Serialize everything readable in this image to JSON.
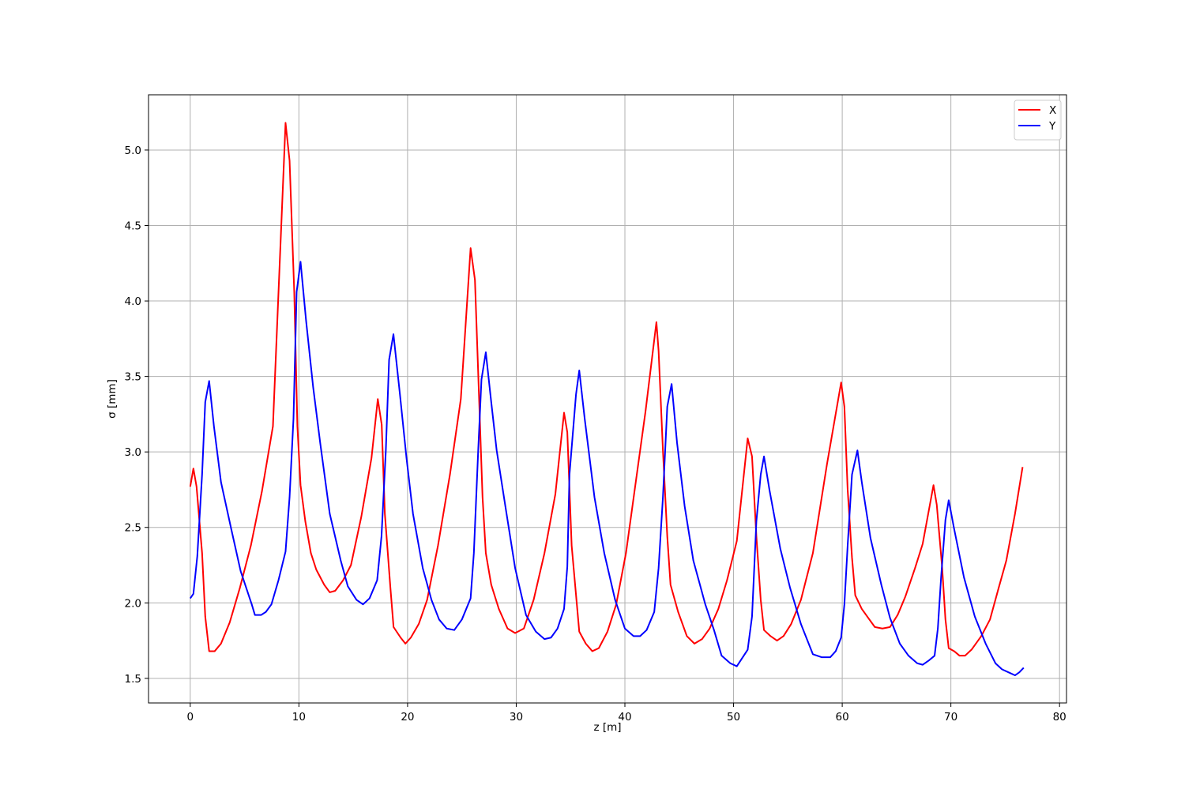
{
  "chart_data": {
    "type": "line",
    "xlabel": "z [m]",
    "ylabel": "σ [mm]",
    "xlim": [
      -3.84,
      80.64
    ],
    "ylim": [
      1.337,
      5.366
    ],
    "xticks": [
      0,
      10,
      20,
      30,
      40,
      50,
      60,
      70,
      80
    ],
    "yticks": [
      1.5,
      {
        "value": 2,
        "label": "2.0"
      },
      2.5,
      {
        "value": 3,
        "label": "3.0"
      },
      3.5,
      {
        "value": 4,
        "label": "4.0"
      },
      4.5,
      {
        "value": 5,
        "label": "5.0"
      }
    ],
    "grid": true,
    "legend": "upper right",
    "series": [
      {
        "name": "X",
        "color": "#ff0000",
        "x": [
          0,
          0.29,
          0.58,
          1.09,
          1.38,
          1.74,
          2.25,
          2.83,
          3.63,
          4.57,
          5.58,
          6.6,
          7.61,
          8.77,
          9.14,
          9.57,
          9.86,
          10.15,
          10.59,
          11.1,
          11.6,
          12.33,
          12.84,
          13.34,
          14.07,
          14.79,
          15.74,
          16.68,
          17.26,
          17.62,
          17.91,
          18.42,
          18.71,
          19.36,
          19.8,
          20.3,
          21.03,
          21.8,
          22.8,
          23.9,
          24.9,
          25.8,
          26.2,
          26.9,
          27.2,
          27.7,
          28.4,
          29.2,
          29.9,
          30.7,
          31.6,
          32.6,
          33.6,
          34.4,
          34.7,
          35.1,
          35.8,
          36.4,
          37.0,
          37.6,
          38.4,
          39.2,
          40.1,
          41.0,
          41.9,
          42.9,
          43.1,
          43.5,
          43.9,
          44.2,
          44.9,
          45.7,
          46.4,
          47.1,
          47.8,
          48.6,
          49.4,
          50.3,
          51.3,
          51.7,
          52.1,
          52.5,
          52.8,
          53.4,
          54.0,
          54.6,
          55.3,
          56.2,
          57.3,
          58.6,
          59.9,
          60.2,
          60.5,
          60.9,
          61.2,
          61.8,
          62.4,
          63.0,
          63.7,
          64.4,
          65.1,
          65.8,
          66.7,
          67.4,
          68.4,
          68.7,
          69.2,
          69.5,
          69.8,
          70.3,
          70.8,
          71.3,
          71.9,
          72.8,
          73.6,
          74.4,
          75.1,
          75.9,
          76.6
        ],
        "values": [
          2.77,
          2.89,
          2.77,
          2.33,
          1.91,
          1.68,
          1.68,
          1.73,
          1.87,
          2.1,
          2.38,
          2.74,
          3.17,
          5.18,
          4.93,
          4.06,
          3.17,
          2.78,
          2.54,
          2.33,
          2.22,
          2.12,
          2.07,
          2.08,
          2.15,
          2.25,
          2.57,
          2.96,
          3.35,
          3.18,
          2.59,
          2.1,
          1.84,
          1.77,
          1.73,
          1.77,
          1.86,
          2.02,
          2.38,
          2.85,
          3.35,
          4.35,
          4.14,
          2.7,
          2.33,
          2.12,
          1.96,
          1.83,
          1.8,
          1.83,
          2.02,
          2.33,
          2.72,
          3.26,
          3.13,
          2.38,
          1.81,
          1.73,
          1.68,
          1.7,
          1.81,
          1.99,
          2.33,
          2.8,
          3.27,
          3.86,
          3.67,
          3.01,
          2.44,
          2.12,
          1.94,
          1.78,
          1.73,
          1.76,
          1.83,
          1.96,
          2.15,
          2.41,
          3.09,
          2.97,
          2.44,
          2.02,
          1.82,
          1.78,
          1.75,
          1.78,
          1.86,
          2.02,
          2.33,
          2.92,
          3.46,
          3.3,
          2.75,
          2.3,
          2.05,
          1.96,
          1.9,
          1.84,
          1.83,
          1.84,
          1.92,
          2.04,
          2.23,
          2.39,
          2.78,
          2.65,
          2.23,
          1.89,
          1.7,
          1.68,
          1.65,
          1.65,
          1.69,
          1.78,
          1.89,
          2.1,
          2.28,
          2.59,
          2.9
        ]
      },
      {
        "name": "Y",
        "color": "#0000ff",
        "x": [
          0,
          0.29,
          0.65,
          1.09,
          1.38,
          1.74,
          2.18,
          2.83,
          3.77,
          4.64,
          5.66,
          5.95,
          6.53,
          6.96,
          7.47,
          8.12,
          8.77,
          9.14,
          9.5,
          9.79,
          10.15,
          10.66,
          11.31,
          11.96,
          12.84,
          13.85,
          14.5,
          15.3,
          15.9,
          16.5,
          17.2,
          17.6,
          18.0,
          18.3,
          18.7,
          19.3,
          19.9,
          20.5,
          21.4,
          22.2,
          22.9,
          23.6,
          24.3,
          25.0,
          25.8,
          26.1,
          26.5,
          26.8,
          27.2,
          27.7,
          28.2,
          29.0,
          29.9,
          30.9,
          31.8,
          32.6,
          33.2,
          33.8,
          34.4,
          34.7,
          34.9,
          35.5,
          35.8,
          36.3,
          37.2,
          38.1,
          39.1,
          40.0,
          40.8,
          41.4,
          42.0,
          42.7,
          43.1,
          43.5,
          43.9,
          44.3,
          44.8,
          45.5,
          46.3,
          47.4,
          48.2,
          48.9,
          49.7,
          50.3,
          51.3,
          51.7,
          52.1,
          52.5,
          52.8,
          53.3,
          54.3,
          55.2,
          56.2,
          57.3,
          58.1,
          58.9,
          59.4,
          59.9,
          60.2,
          60.5,
          60.9,
          61.4,
          61.8,
          62.6,
          63.6,
          64.4,
          65.3,
          66.1,
          66.9,
          67.4,
          68.0,
          68.5,
          68.8,
          69.1,
          69.5,
          69.8,
          70.3,
          71.2,
          72.2,
          73.2,
          74.1,
          74.7,
          75.3,
          75.9,
          76.3,
          76.7
        ],
        "values": [
          2.03,
          2.06,
          2.31,
          2.85,
          3.33,
          3.47,
          3.17,
          2.8,
          2.49,
          2.21,
          1.99,
          1.92,
          1.92,
          1.94,
          1.99,
          2.15,
          2.34,
          2.7,
          3.22,
          4.06,
          4.26,
          3.87,
          3.43,
          3.06,
          2.59,
          2.28,
          2.11,
          2.02,
          1.99,
          2.03,
          2.15,
          2.44,
          3.01,
          3.61,
          3.78,
          3.38,
          2.96,
          2.59,
          2.23,
          2.02,
          1.89,
          1.83,
          1.82,
          1.89,
          2.03,
          2.33,
          3.01,
          3.48,
          3.66,
          3.33,
          3.01,
          2.64,
          2.23,
          1.92,
          1.81,
          1.76,
          1.77,
          1.83,
          1.96,
          2.24,
          2.85,
          3.38,
          3.54,
          3.22,
          2.7,
          2.33,
          2.02,
          1.83,
          1.78,
          1.78,
          1.82,
          1.94,
          2.23,
          2.7,
          3.3,
          3.45,
          3.06,
          2.64,
          2.28,
          1.99,
          1.82,
          1.65,
          1.6,
          1.58,
          1.69,
          1.91,
          2.54,
          2.85,
          2.97,
          2.75,
          2.36,
          2.1,
          1.86,
          1.66,
          1.64,
          1.64,
          1.68,
          1.77,
          1.99,
          2.38,
          2.85,
          3.01,
          2.8,
          2.43,
          2.12,
          1.9,
          1.73,
          1.65,
          1.6,
          1.59,
          1.62,
          1.65,
          1.83,
          2.17,
          2.55,
          2.68,
          2.49,
          2.17,
          1.91,
          1.73,
          1.6,
          1.56,
          1.54,
          1.52,
          1.54,
          1.57
        ]
      }
    ]
  }
}
